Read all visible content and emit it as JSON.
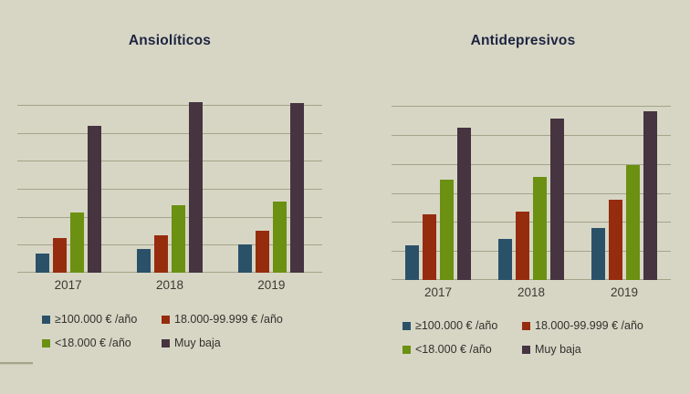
{
  "figure": {
    "background_color": "#d7d6c5",
    "gridline_color": "#a4a489",
    "title_color": "#1d2440",
    "tick_label_color": "#3e3930",
    "legend_text_color": "#31302b"
  },
  "series_colors": {
    "blue": "#2b5169",
    "red": "#962c0e",
    "green": "#6b9012",
    "purple": "#463440"
  },
  "chart_data": [
    {
      "type": "bar",
      "title": "Ansiolíticos",
      "categories": [
        "2017",
        "2018",
        "2019"
      ],
      "series": [
        {
          "name": "≥100.000 € /año",
          "color": "blue",
          "values": [
            0.7,
            0.85,
            1.0
          ]
        },
        {
          "name": "18.000-99.999 € /año",
          "color": "red",
          "values": [
            1.25,
            1.35,
            1.5
          ]
        },
        {
          "name": "<18.000 € /año",
          "color": "green",
          "values": [
            2.15,
            2.4,
            2.55
          ]
        },
        {
          "name": "Muy baja",
          "color": "purple",
          "values": [
            5.25,
            6.1,
            6.05
          ]
        }
      ],
      "xlabel": "",
      "ylabel": "",
      "ylim": [
        0,
        6
      ],
      "grid_step": 1,
      "grid": "horizontal",
      "legend_position": "below"
    },
    {
      "type": "bar",
      "title": "Antidepresivos",
      "categories": [
        "2017",
        "2018",
        "2019"
      ],
      "series": [
        {
          "name": "≥100.000 € /año",
          "color": "blue",
          "values": [
            1.2,
            1.4,
            1.8
          ]
        },
        {
          "name": "18.000-99.999 € /año",
          "color": "red",
          "values": [
            2.25,
            2.35,
            2.75
          ]
        },
        {
          "name": "<18.000 € /año",
          "color": "green",
          "values": [
            3.45,
            3.55,
            3.95
          ]
        },
        {
          "name": "Muy baja",
          "color": "purple",
          "values": [
            5.25,
            5.55,
            5.8
          ]
        }
      ],
      "xlabel": "",
      "ylabel": "",
      "ylim": [
        0,
        6
      ],
      "grid_step": 1,
      "grid": "horizontal",
      "legend_position": "below"
    }
  ]
}
